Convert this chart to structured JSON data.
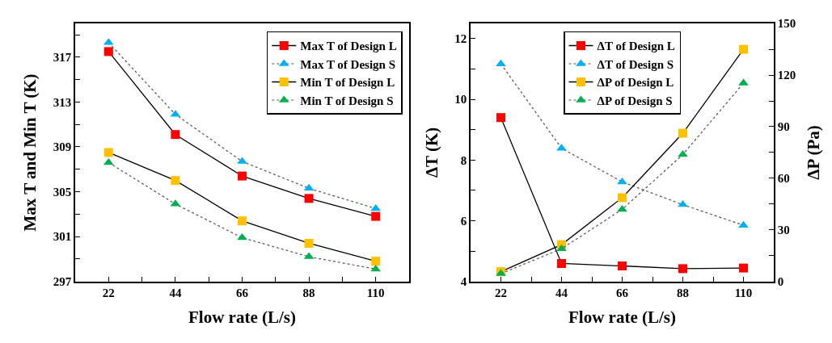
{
  "chart_data": [
    {
      "type": "line",
      "xlabel": "Flow rate (L/s)",
      "ylabel": "Max T and Min T (K)",
      "x": [
        22,
        44,
        66,
        88,
        110
      ],
      "xlim": [
        11,
        121
      ],
      "xticks": [
        22,
        {
          "value": 33,
          "label": null
        },
        44,
        {
          "value": 55,
          "label": null
        },
        66,
        {
          "value": 77,
          "label": null
        },
        88,
        {
          "value": 99,
          "label": null
        },
        110
      ],
      "ylim": [
        297,
        320
      ],
      "yticks": [
        297,
        {
          "value": 299,
          "label": null
        },
        301,
        {
          "value": 303,
          "label": null
        },
        305,
        {
          "value": 307,
          "label": null
        },
        309,
        {
          "value": 311,
          "label": null
        },
        313,
        {
          "value": 315,
          "label": null
        },
        317,
        {
          "value": 319,
          "label": null
        }
      ],
      "legend": "top right",
      "series": [
        {
          "name": "Max T of Design L",
          "color": "#ff0000",
          "marker": "square",
          "line_style": "solid",
          "values": [
            317.5,
            310.1,
            306.4,
            304.4,
            302.8
          ]
        },
        {
          "name": "Max T of Design S",
          "color": "#00b0f0",
          "marker": "triangle",
          "line_style": "dotted",
          "values": [
            318.3,
            311.9,
            307.7,
            305.3,
            303.5
          ]
        },
        {
          "name": "Min T of Design L",
          "color": "#ffc000",
          "marker": "square",
          "line_style": "solid",
          "values": [
            308.5,
            306.0,
            302.4,
            300.4,
            298.8
          ]
        },
        {
          "name": "Min T of Design S",
          "color": "#00b050",
          "marker": "triangle",
          "line_style": "dotted",
          "values": [
            307.6,
            303.9,
            300.9,
            299.2,
            298.1
          ]
        }
      ]
    },
    {
      "type": "line",
      "xlabel": "Flow rate (L/s)",
      "ylabel": "ΔT (K)",
      "y2label": "ΔP (Pa)",
      "x": [
        22,
        44,
        66,
        88,
        110
      ],
      "xlim": [
        11,
        121
      ],
      "xticks": [
        22,
        {
          "value": 33,
          "label": null
        },
        44,
        {
          "value": 55,
          "label": null
        },
        66,
        {
          "value": 77,
          "label": null
        },
        88,
        {
          "value": 99,
          "label": null
        },
        110
      ],
      "ylim": [
        4,
        12.5
      ],
      "yticks": [
        4,
        {
          "value": 5,
          "label": null
        },
        6,
        {
          "value": 7,
          "label": null
        },
        8,
        {
          "value": 9,
          "label": null
        },
        10,
        {
          "value": 11,
          "label": null
        },
        12
      ],
      "y2lim": [
        0,
        150
      ],
      "y2ticks": [
        0,
        {
          "value": 15,
          "label": null
        },
        30,
        {
          "value": 45,
          "label": null
        },
        60,
        {
          "value": 75,
          "label": null
        },
        90,
        {
          "value": 105,
          "label": null
        },
        120,
        {
          "value": 135,
          "label": null
        },
        150
      ],
      "legend": "top",
      "series": [
        {
          "name": "ΔT of Design L",
          "color": "#ff0000",
          "marker": "square",
          "line_style": "solid",
          "values": [
            9.4,
            4.59,
            4.51,
            4.42,
            4.44
          ]
        },
        {
          "name": "ΔT of Design S",
          "color": "#00b0f0",
          "marker": "triangle",
          "line_style": "dotted",
          "values": [
            11.17,
            8.39,
            7.28,
            6.53,
            5.85
          ]
        },
        {
          "name": "ΔP of Design L",
          "color": "#ffc000",
          "marker": "square",
          "line_style": "solid",
          "axis": "y2",
          "values": [
            5.7,
            21.4,
            48.7,
            86.2,
            135.0
          ]
        },
        {
          "name": "ΔP of Design S",
          "color": "#00b050",
          "marker": "triangle",
          "line_style": "dotted",
          "axis": "y2",
          "values": [
            4.5,
            19.0,
            41.9,
            73.8,
            115.3
          ]
        }
      ]
    }
  ]
}
